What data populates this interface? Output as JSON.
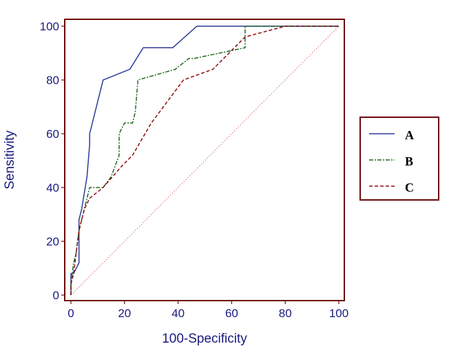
{
  "chart_data": {
    "type": "line",
    "title": "",
    "xlabel": "100-Specificity",
    "ylabel": "Sensitivity",
    "xlim": [
      0,
      100
    ],
    "ylim": [
      0,
      100
    ],
    "xticks": [
      "0",
      "20",
      "40",
      "60",
      "80",
      "100"
    ],
    "yticks": [
      "0",
      "20",
      "40",
      "60",
      "80",
      "100"
    ],
    "legend_position": "right",
    "colors": {
      "frame": "#6b0a0a",
      "tick_text": "#1a1a80",
      "reference": "#d04040"
    },
    "series": [
      {
        "name": "A",
        "color": "#2c3a9a",
        "dash": "solid",
        "x": [
          0,
          0,
          1,
          3,
          3,
          4,
          6,
          7,
          7,
          12,
          22,
          27,
          38,
          47,
          100
        ],
        "y": [
          0,
          8,
          8,
          12,
          28,
          32,
          44,
          56,
          60,
          80,
          84,
          92,
          92,
          100,
          100
        ]
      },
      {
        "name": "B",
        "color": "#1e6b1e",
        "dash": "dashdot",
        "x": [
          0,
          0,
          1,
          2,
          3,
          4,
          5,
          6,
          7,
          10,
          12,
          15,
          18,
          18,
          20,
          23,
          24,
          25,
          39,
          44,
          46,
          65,
          65,
          100
        ],
        "y": [
          0,
          4,
          12,
          16,
          24,
          28,
          32,
          36,
          40,
          40,
          40,
          44,
          52,
          60,
          64,
          64,
          68,
          80,
          84,
          88,
          88,
          92,
          100,
          100
        ]
      },
      {
        "name": "C",
        "color": "#8b0a0a",
        "dash": "dashed",
        "x": [
          0,
          0,
          1,
          2,
          3,
          4,
          5,
          6,
          7,
          12,
          19,
          23,
          30,
          42,
          53,
          65,
          80,
          100
        ],
        "y": [
          0,
          4,
          8,
          16,
          24,
          28,
          32,
          34,
          36,
          40,
          48,
          52,
          64,
          80,
          84,
          96,
          100,
          100
        ]
      }
    ],
    "reference_line": {
      "x": [
        0,
        100
      ],
      "y": [
        0,
        100
      ],
      "style": "dotted"
    }
  }
}
